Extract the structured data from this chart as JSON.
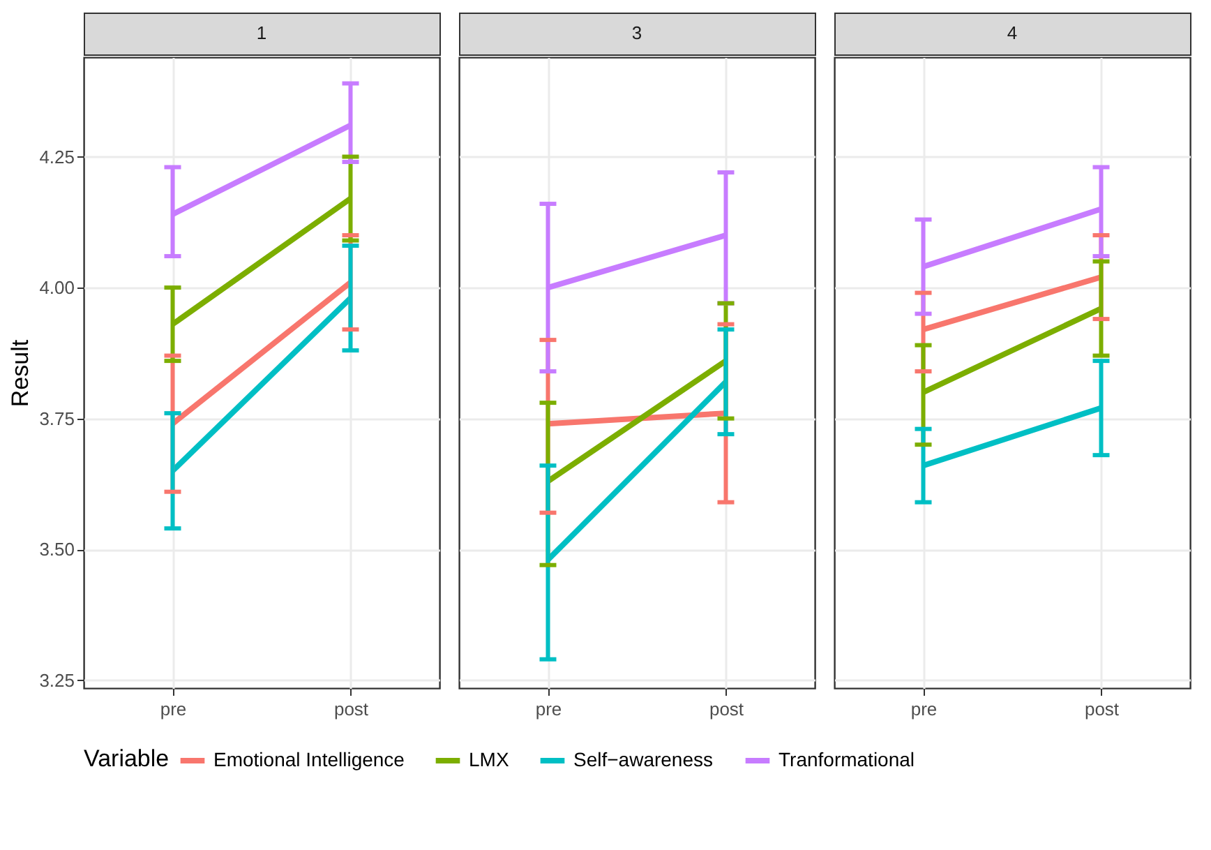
{
  "chart_data": [
    {
      "type": "line",
      "title": "1",
      "ylabel": "Result",
      "categories": [
        "pre",
        "post"
      ],
      "ylim": [
        3.235,
        4.44
      ],
      "yticks": [
        3.25,
        {
          "value": 3.5,
          "label": "3.50"
        },
        3.75,
        {
          "value": 4,
          "label": "4.00"
        },
        4.25
      ],
      "grid": true,
      "legend": "bottom",
      "legend_title": "Variable",
      "series": [
        {
          "name": "Emotional Intelligence",
          "color": "#f8766d",
          "values": [
            3.74,
            4.01
          ],
          "errors": [
            [
              3.61,
              3.87
            ],
            [
              3.92,
              4.1
            ]
          ]
        },
        {
          "name": "LMX",
          "color": "#7cae00",
          "values": [
            3.93,
            4.17
          ],
          "errors": [
            [
              3.86,
              4
            ],
            [
              4.09,
              4.25
            ]
          ]
        },
        {
          "name": "Self−awareness",
          "color": "#00bfc4",
          "values": [
            3.65,
            3.98
          ],
          "errors": [
            [
              3.54,
              3.76
            ],
            [
              3.88,
              4.08
            ]
          ]
        },
        {
          "name": "Tranformational",
          "color": "#c77cff",
          "values": [
            4.14,
            4.31
          ],
          "errors": [
            [
              4.06,
              4.23
            ],
            [
              4.24,
              4.39
            ]
          ]
        }
      ]
    },
    {
      "type": "line",
      "title": "3",
      "categories": [
        "pre",
        "post"
      ],
      "ylim": [
        3.235,
        4.44
      ],
      "yticks": [
        3.25,
        3.5,
        3.75,
        4,
        4.25
      ],
      "grid": true,
      "tick_labels": "x",
      "series": [
        {
          "name": "Emotional Intelligence",
          "color": "#f8766d",
          "values": [
            3.74,
            3.76
          ],
          "errors": [
            [
              3.57,
              3.9
            ],
            [
              3.59,
              3.93
            ]
          ]
        },
        {
          "name": "LMX",
          "color": "#7cae00",
          "values": [
            3.63,
            3.86
          ],
          "errors": [
            [
              3.47,
              3.78
            ],
            [
              3.75,
              3.97
            ]
          ]
        },
        {
          "name": "Self−awareness",
          "color": "#00bfc4",
          "values": [
            3.48,
            3.82
          ],
          "errors": [
            [
              3.29,
              3.66
            ],
            [
              3.72,
              3.92
            ]
          ]
        },
        {
          "name": "Tranformational",
          "color": "#c77cff",
          "values": [
            4,
            4.1
          ],
          "errors": [
            [
              3.84,
              4.16
            ],
            [
              3.97,
              4.22
            ]
          ]
        }
      ]
    },
    {
      "type": "line",
      "title": "4",
      "categories": [
        "pre",
        "post"
      ],
      "ylim": [
        3.235,
        4.44
      ],
      "yticks": [
        3.25,
        3.5,
        3.75,
        4,
        4.25
      ],
      "grid": true,
      "tick_labels": "x",
      "series": [
        {
          "name": "Emotional Intelligence",
          "color": "#f8766d",
          "values": [
            3.92,
            4.02
          ],
          "errors": [
            [
              3.84,
              3.99
            ],
            [
              3.94,
              4.1
            ]
          ]
        },
        {
          "name": "LMX",
          "color": "#7cae00",
          "values": [
            3.8,
            3.96
          ],
          "errors": [
            [
              3.7,
              3.89
            ],
            [
              3.87,
              4.05
            ]
          ]
        },
        {
          "name": "Self−awareness",
          "color": "#00bfc4",
          "values": [
            3.66,
            3.77
          ],
          "errors": [
            [
              3.59,
              3.73
            ],
            [
              3.68,
              3.86
            ]
          ]
        },
        {
          "name": "Tranformational",
          "color": "#c77cff",
          "values": [
            4.04,
            4.15
          ],
          "errors": [
            [
              3.95,
              4.13
            ],
            [
              4.06,
              4.23
            ]
          ]
        }
      ]
    }
  ]
}
